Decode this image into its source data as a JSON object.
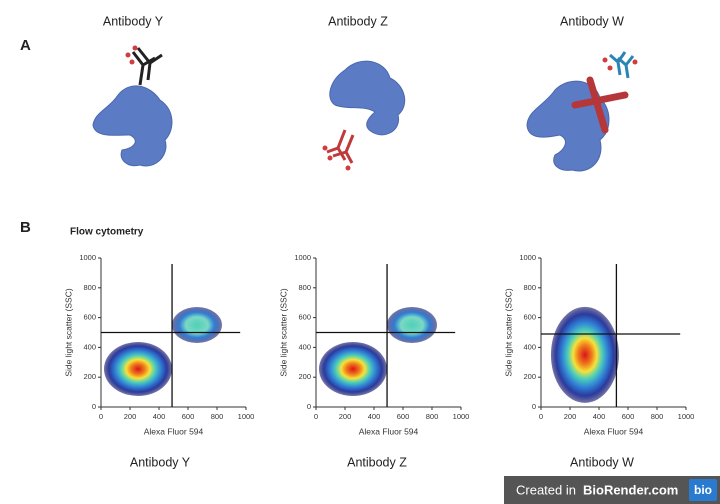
{
  "panel_a": {
    "label": "A",
    "antibodies": [
      "Antibody Y",
      "Antibody Z",
      "Antibody W"
    ]
  },
  "panel_b": {
    "label": "B",
    "title": "Flow cytometry",
    "captions": [
      "Antibody Y",
      "Antibody Z",
      "Antibody W"
    ]
  },
  "chart_data": [
    {
      "type": "density",
      "x_label": "Alexa Fluor 594",
      "y_label": "Side light scatter (SSC)",
      "xlim": [
        0,
        1000
      ],
      "ylim": [
        0,
        1000
      ],
      "xticks": [
        0,
        200,
        400,
        600,
        800,
        1000
      ],
      "yticks": [
        0,
        200,
        400,
        600,
        800,
        1000
      ],
      "gates": {
        "x": 490,
        "y": 500
      },
      "clusters": [
        {
          "x": 255,
          "y": 255
        },
        {
          "x": 662,
          "y": 550
        }
      ]
    },
    {
      "type": "density",
      "x_label": "Alexa Fluor 594",
      "y_label": "Side light scatter (SSC)",
      "xlim": [
        0,
        1000
      ],
      "ylim": [
        0,
        1000
      ],
      "xticks": [
        0,
        200,
        400,
        600,
        800,
        1000
      ],
      "yticks": [
        0,
        200,
        400,
        600,
        800,
        1000
      ],
      "gates": {
        "x": 490,
        "y": 500
      },
      "clusters": [
        {
          "x": 255,
          "y": 255
        },
        {
          "x": 662,
          "y": 550
        }
      ]
    },
    {
      "type": "density",
      "x_label": "Alexa Fluor 594",
      "y_label": "Side light scatter (SSC)",
      "xlim": [
        0,
        1000
      ],
      "ylim": [
        0,
        1000
      ],
      "xticks": [
        0,
        200,
        400,
        600,
        800,
        1000
      ],
      "yticks": [
        0,
        200,
        400,
        600,
        800,
        1000
      ],
      "gates": {
        "x": 520,
        "y": 490
      },
      "clusters": [
        {
          "x": 303,
          "y": 350
        }
      ]
    }
  ],
  "footer": {
    "prefix": "Created in",
    "brand": "BioRender.com",
    "badge": "bio"
  }
}
